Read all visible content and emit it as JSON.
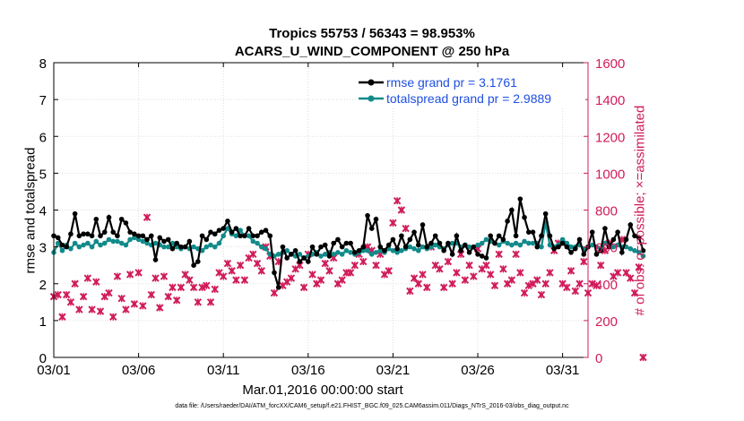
{
  "chart_data": {
    "type": "line",
    "title": "Tropics 55753 / 56343 = 98.953%",
    "subtitle": "ACARS_U_WIND_COMPONENT @ 250 hPa",
    "xlabel": "Mar.01,2016 00:00:00 start",
    "ylabel_left": "rmse and totalspread",
    "ylabel_right": "# of obs: o=possible; ×=assimilated",
    "footer": "data file: /Users/raeder/DAI/ATM_forcXX/CAM6_setup/f.e21.FHIST_BGC.f09_025.CAM6assim.011/Diags_NTrS_2016-03/obs_diag_output.nc",
    "xlim": [
      1,
      32.5
    ],
    "ylim_left": [
      0,
      8
    ],
    "ylim_right": [
      0,
      1600
    ],
    "x_ticks": [
      1,
      6,
      11,
      16,
      21,
      26,
      31
    ],
    "x_tick_labels": [
      "03/01",
      "03/06",
      "03/11",
      "03/16",
      "03/21",
      "03/26",
      "03/31"
    ],
    "y_left_ticks": [
      "0",
      "1",
      "2",
      "3",
      "4",
      "5",
      "6",
      "7",
      "8"
    ],
    "y_right_ticks": [
      "0",
      "200",
      "400",
      "600",
      "800",
      "1000",
      "1200",
      "1400",
      "1600"
    ],
    "grid": true,
    "legend": {
      "position": "top-right",
      "entries": [
        "rmse grand pr = 3.1761",
        "totalspread grand pr = 2.9889"
      ]
    },
    "colors": {
      "rmse": "#000000",
      "spread": "#118a8a",
      "obs": "#d01c5b",
      "legend_text": "#1f4fe0",
      "grid": "#dddddd"
    },
    "series": [
      {
        "name": "rmse grand pr = 3.1761",
        "axis": "left",
        "x_start": 1.0,
        "x_step": 0.25,
        "values": [
          3.3,
          3.25,
          3.05,
          3.0,
          3.35,
          3.9,
          3.3,
          3.35,
          3.35,
          3.3,
          3.75,
          3.3,
          3.4,
          3.8,
          3.4,
          3.3,
          3.75,
          3.65,
          3.4,
          3.35,
          3.3,
          3.3,
          3.2,
          3.3,
          2.65,
          3.25,
          3.15,
          3.2,
          2.95,
          3.1,
          3.0,
          3.0,
          3.15,
          2.5,
          2.6,
          3.3,
          3.2,
          3.4,
          3.35,
          3.45,
          3.5,
          3.7,
          3.4,
          3.5,
          3.3,
          3.3,
          3.5,
          3.3,
          3.3,
          3.4,
          3.45,
          3.3,
          2.3,
          1.9,
          3.0,
          2.7,
          2.8,
          2.9,
          2.6,
          2.7,
          2.6,
          3.0,
          2.8,
          3.0,
          3.05,
          2.75,
          3.1,
          3.2,
          3.0,
          3.1,
          3.1,
          2.85,
          2.9,
          3.0,
          3.85,
          3.5,
          3.75,
          3.0,
          2.9,
          3.05,
          3.2,
          2.95,
          3.3,
          3.0,
          3.2,
          3.4,
          3.05,
          3.6,
          3.0,
          3.1,
          3.3,
          3.1,
          2.9,
          3.1,
          2.8,
          3.3,
          2.9,
          3.05,
          2.85,
          3.0,
          2.8,
          2.75,
          2.7,
          3.3,
          3.1,
          3.3,
          3.2,
          3.7,
          4.0,
          3.3,
          4.3,
          3.8,
          3.4,
          3.4,
          3.0,
          3.3,
          3.9,
          3.3,
          2.95,
          3.0,
          3.1,
          3.0,
          2.85,
          2.95,
          3.2,
          2.8,
          3.0,
          3.4,
          2.8,
          2.9,
          3.5,
          3.0,
          3.2,
          3.4,
          2.85,
          3.2,
          3.6,
          3.3,
          3.25,
          2.9
        ]
      },
      {
        "name": "totalspread grand pr = 2.9889",
        "axis": "left",
        "x_start": 1.0,
        "x_step": 0.25,
        "values": [
          2.85,
          3.1,
          2.9,
          3.05,
          2.95,
          3.1,
          3.0,
          3.05,
          3.1,
          3.0,
          3.15,
          3.05,
          3.1,
          3.2,
          3.15,
          3.15,
          3.1,
          3.05,
          3.2,
          3.25,
          3.2,
          3.15,
          3.1,
          3.05,
          3.1,
          3.05,
          3.0,
          3.0,
          3.1,
          3.0,
          2.95,
          3.0,
          2.95,
          3.0,
          2.95,
          2.9,
          3.0,
          3.05,
          3.0,
          3.1,
          3.3,
          3.5,
          3.35,
          3.3,
          3.45,
          3.3,
          3.3,
          3.15,
          3.1,
          3.0,
          2.95,
          2.8,
          2.75,
          2.8,
          2.85,
          2.9,
          2.8,
          2.75,
          2.8,
          2.7,
          2.75,
          2.8,
          2.85,
          2.75,
          2.8,
          2.85,
          2.8,
          2.85,
          2.8,
          2.9,
          2.85,
          2.8,
          2.85,
          2.9,
          2.9,
          2.8,
          2.85,
          2.9,
          2.85,
          2.95,
          2.9,
          2.85,
          2.9,
          2.95,
          3.0,
          2.95,
          2.9,
          3.0,
          2.95,
          3.0,
          3.05,
          3.0,
          2.95,
          3.05,
          3.1,
          3.1,
          3.0,
          3.05,
          3.0,
          3.0,
          3.05,
          3.1,
          3.2,
          3.15,
          3.1,
          3.05,
          3.15,
          3.1,
          3.05,
          3.1,
          3.05,
          3.15,
          3.1,
          3.1,
          3.1,
          3.0,
          3.65,
          3.05,
          3.0,
          3.05,
          3.2,
          3.1,
          3.0,
          3.0,
          3.05,
          2.95,
          3.0,
          3.05,
          3.0,
          2.95,
          3.1,
          3.05,
          3.0,
          3.05,
          3.0,
          3.0,
          2.95,
          2.9,
          2.85,
          2.75
        ]
      },
      {
        "name": "assimilated obs",
        "axis": "right",
        "x_start": 1.0,
        "x_step": 0.25,
        "values": [
          330,
          340,
          220,
          340,
          300,
          400,
          260,
          330,
          430,
          260,
          410,
          250,
          330,
          350,
          220,
          440,
          320,
          260,
          450,
          290,
          460,
          280,
          760,
          340,
          430,
          270,
          440,
          330,
          380,
          310,
          380,
          450,
          420,
          380,
          300,
          380,
          390,
          300,
          370,
          460,
          440,
          510,
          470,
          420,
          500,
          420,
          540,
          560,
          510,
          470,
          600,
          550,
          350,
          520,
          390,
          410,
          430,
          480,
          500,
          380,
          560,
          450,
          400,
          420,
          510,
          470,
          540,
          400,
          420,
          460,
          460,
          500,
          560,
          520,
          600,
          580,
          500,
          560,
          450,
          470,
          730,
          850,
          800,
          700,
          360,
          430,
          400,
          450,
          380,
          600,
          500,
          480,
          380,
          520,
          400,
          460,
          560,
          420,
          500,
          440,
          590,
          480,
          500,
          450,
          390,
          560,
          480,
          400,
          420,
          560,
          460,
          350,
          390,
          400,
          420,
          340,
          400,
          460,
          580,
          620,
          400,
          380,
          470,
          360,
          400,
          520,
          350,
          400,
          390,
          500,
          580,
          620,
          440,
          460,
          640,
          460,
          430,
          350,
          490,
          0
        ]
      }
    ]
  }
}
